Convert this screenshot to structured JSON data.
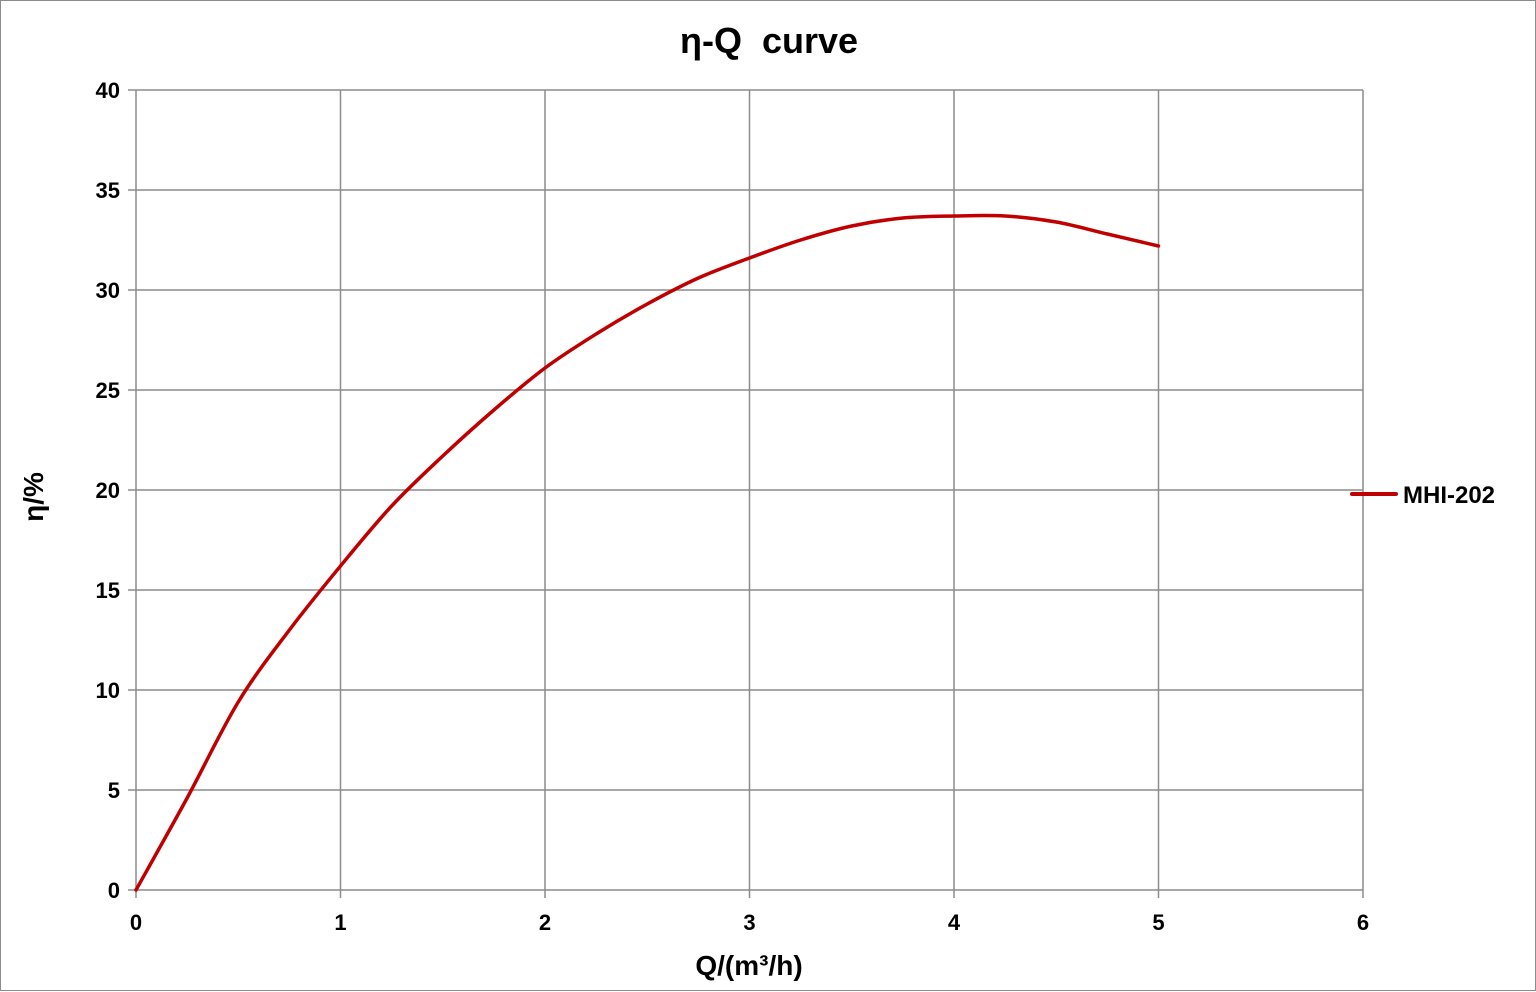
{
  "chart_data": {
    "type": "line",
    "title": "η-Q  curve",
    "xlabel": "Q/(m³/h)",
    "ylabel": "η/%",
    "xlim": [
      0,
      6
    ],
    "ylim": [
      0,
      40
    ],
    "xticks": [
      0,
      1,
      2,
      3,
      4,
      5,
      6
    ],
    "yticks": [
      0,
      5,
      10,
      15,
      20,
      25,
      30,
      35,
      40
    ],
    "grid": true,
    "legend_position": "right",
    "series": [
      {
        "name": "MHI-202",
        "color": "#c00000",
        "x": [
          0,
          0.25,
          0.5,
          0.75,
          1.0,
          1.25,
          1.5,
          1.75,
          2.0,
          2.25,
          2.5,
          2.75,
          3.0,
          3.25,
          3.5,
          3.75,
          4.0,
          4.25,
          4.5,
          4.75,
          5.0
        ],
        "y": [
          0,
          4.6,
          9.4,
          13.0,
          16.2,
          19.2,
          21.7,
          24.0,
          26.1,
          27.8,
          29.3,
          30.6,
          31.6,
          32.5,
          33.2,
          33.6,
          33.7,
          33.7,
          33.4,
          32.8,
          32.2
        ]
      }
    ]
  }
}
